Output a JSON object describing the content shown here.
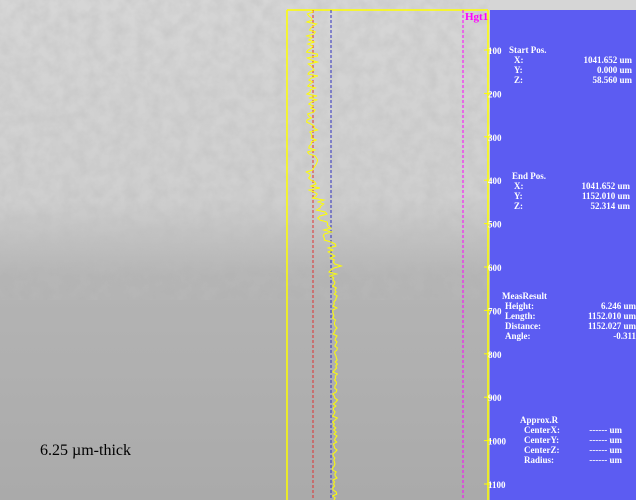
{
  "title": "Hgt1",
  "ruler": [
    "100",
    "200",
    "300",
    "400",
    "500",
    "600",
    "700",
    "800",
    "900",
    "1000",
    "1100"
  ],
  "start_pos": {
    "label": "Start Pos.",
    "rows": [
      [
        "X:",
        "1041.652 um"
      ],
      [
        "Y:",
        "0.000 um"
      ],
      [
        "Z:",
        "58.560 um"
      ]
    ]
  },
  "end_pos": {
    "label": "End Pos.",
    "rows": [
      [
        "X:",
        "1041.652 um"
      ],
      [
        "Y:",
        "1152.010 um"
      ],
      [
        "Z:",
        "52.314 um"
      ]
    ]
  },
  "meas_result": {
    "label": "MeasResult",
    "rows": [
      [
        "Height:",
        "6.246 um"
      ],
      [
        "Length:",
        "1152.010 um"
      ],
      [
        "Distance:",
        "1152.027 um"
      ],
      [
        "Angle:",
        "-0.311"
      ]
    ]
  },
  "approx_r": {
    "label": "Approx.R",
    "rows": [
      [
        "CenterX:",
        "------ um"
      ],
      [
        "CenterY:",
        "------ um"
      ],
      [
        "CenterZ:",
        "------ um"
      ],
      [
        "Radius:",
        "------ um"
      ]
    ]
  },
  "caption": "6.25 µm-thick"
}
